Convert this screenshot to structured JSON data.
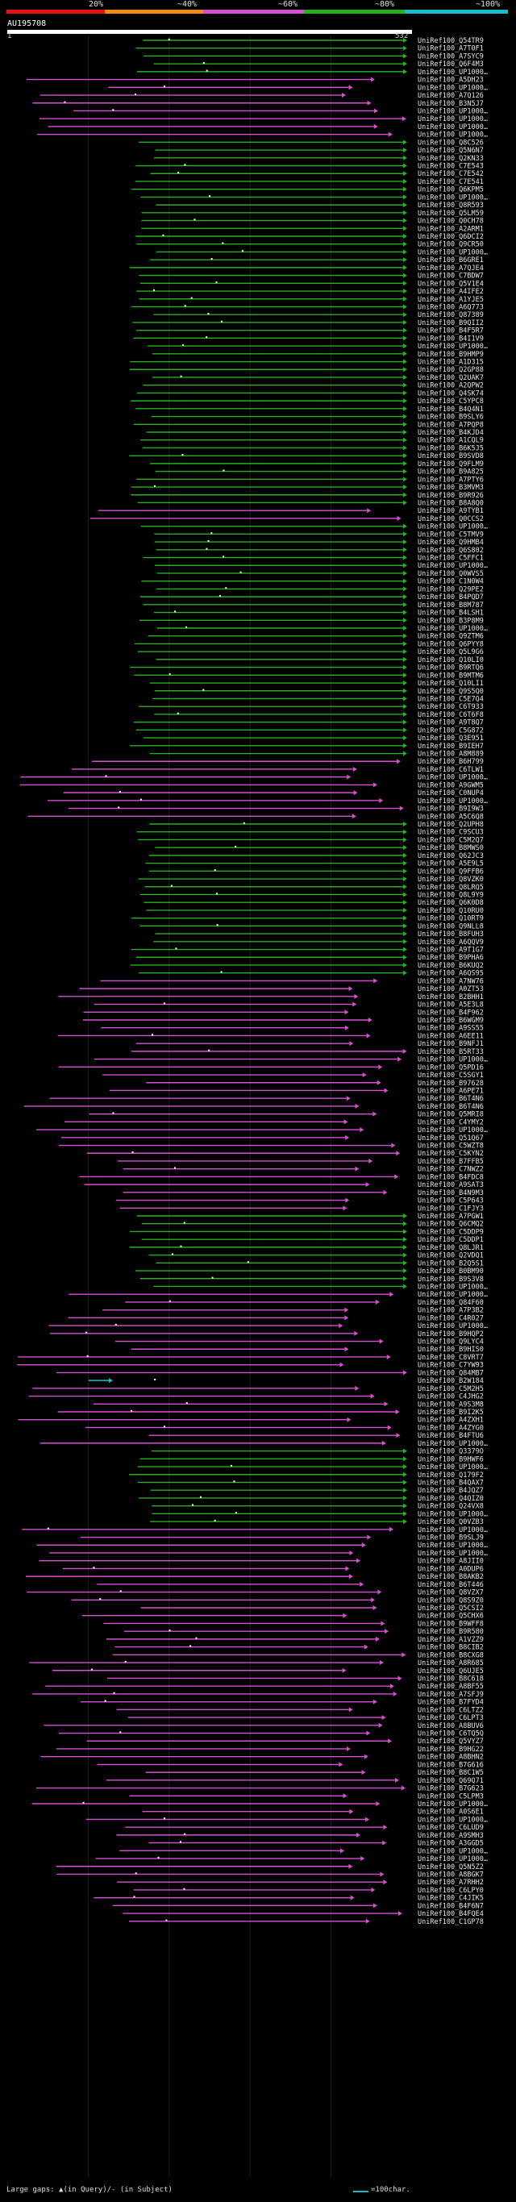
{
  "legend": {
    "labels": [
      "20%",
      "~40%",
      "~60%",
      "~80%",
      "~100%"
    ],
    "colors": {
      "red": "#e8101a",
      "orange": "#f58a12",
      "magenta": "#d94fd2",
      "green": "#27b021",
      "cyan": "#17bec8"
    }
  },
  "query": {
    "id": "AU195708",
    "start_label": "1",
    "end_label": "532",
    "length": 532
  },
  "hit_labels": [
    "UniRef100_Q54TR9",
    "UniRef100_A7T0F1",
    "UniRef100_A7SYC9",
    "UniRef100_Q6F4M3",
    "UniRef100_UP1000…",
    "UniRef100_A5DH23",
    "UniRef100_UP1000…",
    "UniRef100_A7Q126",
    "UniRef100_B3N5J7",
    "UniRef100_UP1000…",
    "UniRef100_UP1000…",
    "UniRef100_UP1000…",
    "UniRef100_UP1000…",
    "UniRef100_Q8C526",
    "UniRef100_Q5N6N7",
    "UniRef100_Q2KN33",
    "UniRef100_C7E543",
    "UniRef100_C7E542",
    "UniRef100_C7E541",
    "UniRef100_Q6KPM5",
    "UniRef100_UP1000…",
    "UniRef100_Q8R593",
    "UniRef100_Q5LM59",
    "UniRef100_Q0CH78",
    "UniRef100_A2ARM1",
    "UniRef100_Q6DCI2",
    "UniRef100_Q9CR50",
    "UniRef100_UP1000…",
    "UniRef100_B6GRE1",
    "UniRef100_A7QJE4",
    "UniRef100_C7BDW7",
    "UniRef100_Q5V1E4",
    "UniRef100_A4IFE2",
    "UniRef100_A1YJE5",
    "UniRef100_A6Q773",
    "UniRef100_Q87389",
    "UniRef100_B9QII2",
    "UniRef100_B4F5R7",
    "UniRef100_B4I1V9",
    "UniRef100_UP1000…",
    "UniRef100_B9HMP9",
    "UniRef100_A1D315",
    "UniRef100_Q2GP88",
    "UniRef100_Q2UAK7",
    "UniRef100_A2QPW2",
    "UniRef100_Q4SK74",
    "UniRef100_C5YPC8",
    "UniRef100_B4Q4N1",
    "UniRef100_B9SLY6",
    "UniRef100_A7PQP8",
    "UniRef100_B4KJD4",
    "UniRef100_A1CQL9",
    "UniRef100_B6K5J5",
    "UniRef100_B9SVD8",
    "UniRef100_Q9FLM9",
    "UniRef100_B9A825",
    "UniRef100_A7PTY6",
    "UniRef100_B3MVM3",
    "UniRef100_B9R926",
    "UniRef100_B8A8Q0",
    "UniRef100_A9TYB1",
    "UniRef100_Q0CCS2",
    "UniRef100_UP1000…",
    "UniRef100_C5TMV9",
    "UniRef100_Q9HMB4",
    "UniRef100_Q6S802",
    "UniRef100_C5FFC1",
    "UniRef100_UP1000…",
    "UniRef100_Q0WVS5",
    "UniRef100_C1N0W4",
    "UniRef100_Q29PE2",
    "UniRef100_B4PQD7",
    "UniRef100_B8M787",
    "UniRef100_B4LSH1",
    "UniRef100_B3P8M9",
    "UniRef100_UP1000…",
    "UniRef100_Q9ZTM6",
    "UniRef100_Q6PYY8",
    "UniRef100_Q5L9G6",
    "UniRef100_Q10LI0",
    "UniRef100_B9RTQ6",
    "UniRef100_B9MTM6",
    "UniRef100_Q10LI1",
    "UniRef100_Q9S5Q0",
    "UniRef100_C5E7Q4",
    "UniRef100_C6T933",
    "UniRef100_C6T6F8",
    "UniRef100_A9T8Q7",
    "UniRef100_C5G872",
    "UniRef100_Q3E951",
    "UniRef100_B9IEH7",
    "UniRef100_A8M889",
    "UniRef100_B6H799",
    "UniRef100_C6TLW1",
    "UniRef100_UP1000…",
    "UniRef100_A9GWM5",
    "UniRef100_C0NUP4",
    "UniRef100_UP1000…",
    "UniRef100_B9I9W3",
    "UniRef100_A5C6Q8",
    "UniRef100_Q2UPH8",
    "UniRef100_C9SCU3",
    "UniRef100_C5M2Q7",
    "UniRef100_B8MWS0",
    "UniRef100_Q62JC3",
    "UniRef100_A5E9L5",
    "UniRef100_Q9FFB6",
    "UniRef100_Q8VZK0",
    "UniRef100_Q8LRQ5",
    "UniRef100_Q8L9Y9",
    "UniRef100_Q6K0D8",
    "UniRef100_Q10RU0",
    "UniRef100_Q10RT9",
    "UniRef100_Q9NLL8",
    "UniRef100_B8FUH3",
    "UniRef100_A6QQV9",
    "UniRef100_A9T1G7",
    "UniRef100_B9PHA6",
    "UniRef100_B6KUQ2",
    "UniRef100_A6QS95",
    "UniRef100_A7NW76",
    "UniRef100_A0ZT53",
    "UniRef100_B2BHH1",
    "UniRef100_A5E3L8",
    "UniRef100_B4F962",
    "UniRef100_B6WGM9",
    "UniRef100_A9SS55",
    "UniRef100_A6EE11",
    "UniRef100_B9NFJ1",
    "UniRef100_B5RT33",
    "UniRef100_UP1000…",
    "UniRef100_Q5PD16",
    "UniRef100_C5SGY1",
    "UniRef100_B97628",
    "UniRef100_A6PE71",
    "UniRef100_B6T4N6",
    "UniRef100_B6T4N6",
    "UniRef100_Q5MRI8",
    "UniRef100_C4YMY2",
    "UniRef100_UP1000…",
    "UniRef100_Q51Q67",
    "UniRef100_C5WZT8",
    "UniRef100_C5KYN2",
    "UniRef100_B7FFB5",
    "UniRef100_C7NWZ2",
    "UniRef100_B4FDC8",
    "UniRef100_A9SAT3",
    "UniRef100_B4N9M3",
    "UniRef100_C5P643",
    "UniRef100_C1FJY3",
    "UniRef100_A7PGW1",
    "UniRef100_Q6CMQ2",
    "UniRef100_C5DDP9",
    "UniRef100_C5DDP1",
    "UniRef100_Q8LJR1",
    "UniRef100_Q2VDQ1",
    "UniRef100_B2Q5S1",
    "UniRef100_B0BM90",
    "UniRef100_B9S3V8",
    "UniRef100_UP1000…",
    "UniRef100_UP1000…",
    "UniRef100_Q84F60",
    "UniRef100_A7P3B2",
    "UniRef100_C4R027",
    "UniRef100_UP1000…",
    "UniRef100_B9HQP2",
    "UniRef100_Q9LYC4",
    "UniRef100_B9HIS0",
    "UniRef100_C8VRT7",
    "UniRef100_C7YW93",
    "UniRef100_Q84MB7",
    "UniRef100_B2W184",
    "UniRef100_C5M2H5",
    "UniRef100_C4JHG2",
    "UniRef100_A9S3M8",
    "UniRef100_B9I2K5",
    "UniRef100_A4ZXH1",
    "UniRef100_A4ZYG0",
    "UniRef100_B4FTU6",
    "UniRef100_UP1000…",
    "UniRef100_Q3379O",
    "UniRef100_B9HWF6",
    "UniRef100_UP1000…",
    "UniRef100_Q179F2",
    "UniRef100_B4QAX7",
    "UniRef100_B4JQZ7",
    "UniRef100_Q4QIZ0",
    "UniRef100_Q24VX8",
    "UniRef100_UP1000…",
    "UniRef100_Q0VZB3",
    "UniRef100_UP1000…",
    "UniRef100_B9SLJ9",
    "UniRef100_UP1000…",
    "UniRef100_UP1000…",
    "UniRef100_A8JII0",
    "UniRef100_A0DUP6",
    "UniRef100_B8AKB2",
    "UniRef100_B6T446",
    "UniRef100_Q8VZX7",
    "UniRef100_Q8S9Z0",
    "UniRef100_Q5CSI2",
    "UniRef100_Q5CHX6",
    "UniRef100_B9WFF8",
    "UniRef100_B9R580",
    "UniRef100_A1VZZ9",
    "UniRef100_B8CIB2",
    "UniRef100_B8CXG8",
    "UniRef100_A8R685",
    "UniRef100_Q6UJE5",
    "UniRef100_B8C618",
    "UniRef100_A8BF55",
    "UniRef100_A7SFJ9",
    "UniRef100_B7FYD4",
    "UniRef100_C6LTZ2",
    "UniRef100_C6LPT3",
    "UniRef100_A8BUV6",
    "UniRef100_C6TQ5Q",
    "UniRef100_Q5VYZ7",
    "UniRef100_B9HG22",
    "UniRef100_A8BHN2",
    "UniRef100_B7G616",
    "UniRef100_B8C1W5",
    "UniRef100_Q69Q71",
    "UniRef100_B7G623",
    "UniRef100_C5LPM3",
    "UniRef100_UP1000…",
    "UniRef100_A0S6E1",
    "UniRef100_UP1000…",
    "UniRef100_C6LUD9",
    "UniRef100_A9SMH3",
    "UniRef100_A3GGD5",
    "UniRef100_UP1000…",
    "UniRef100_UP1000…",
    "UniRef100_Q5N5Z2",
    "UniRef100_A8BGK7",
    "UniRef100_A7RHH2",
    "UniRef100_C6LPY0",
    "UniRef100_C4JIK5",
    "UniRef100_B4F6N7",
    "UniRef100_B4FQE4",
    "UniRef100_C1GP78"
  ],
  "footer": {
    "text": "Large gaps: ▲(in Query)/- (in Subject)",
    "scale_label": "=100char."
  }
}
